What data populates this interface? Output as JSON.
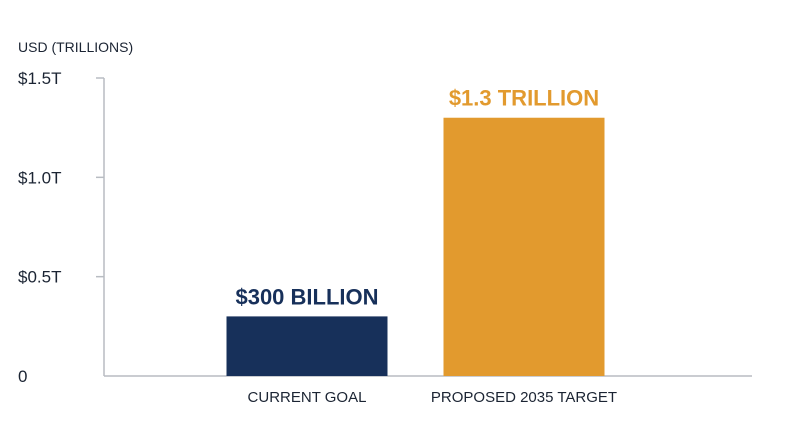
{
  "chart_data": {
    "type": "bar",
    "ylabel": "USD (TRILLIONS)",
    "ylim": [
      0,
      1.5
    ],
    "yticks": [
      {
        "value": 0,
        "label": "0"
      },
      {
        "value": 0.5,
        "label": "$0.5T"
      },
      {
        "value": 1.0,
        "label": "$1.0T"
      },
      {
        "value": 1.5,
        "label": "$1.5T"
      }
    ],
    "categories": [
      "CURRENT GOAL",
      "PROPOSED 2035 TARGET"
    ],
    "values": [
      0.3,
      1.3
    ],
    "data_labels": [
      "$300 BILLION",
      "$1.3 TRILLION"
    ],
    "colors": [
      "#17305a",
      "#e29a2e"
    ],
    "axis_color": "#b8bcc2",
    "text_color": "#1b2433",
    "grid": false
  }
}
